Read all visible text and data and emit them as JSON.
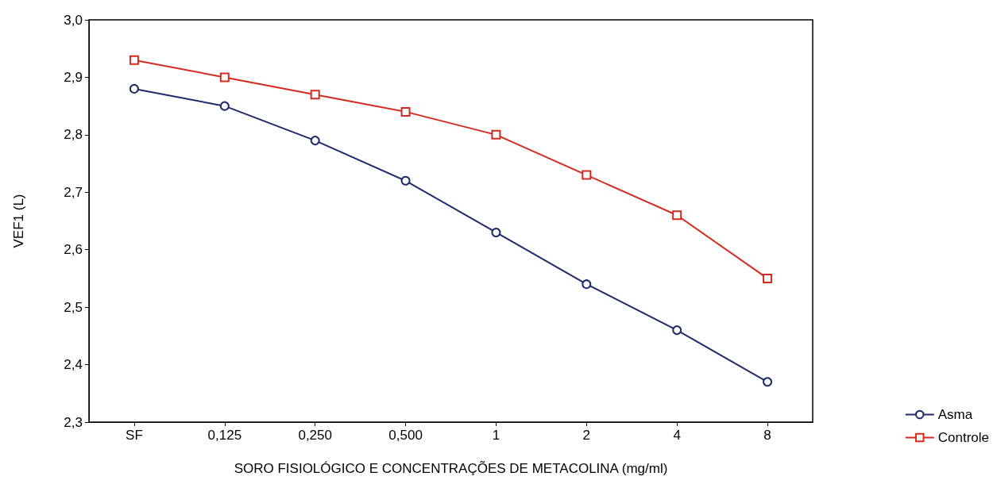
{
  "chart_data": {
    "type": "line",
    "xlabel": "SORO FISIOLÓGICO E CONCENTRAÇÕES DE METACOLINA (mg/ml)",
    "ylabel": "VEF1 (L)",
    "categories": [
      "SF",
      "0,125",
      "0,250",
      "0,500",
      "1",
      "2",
      "4",
      "8"
    ],
    "series": [
      {
        "name": "Asma",
        "color": "#1f2a6e",
        "marker": "circle",
        "values": [
          2.88,
          2.85,
          2.79,
          2.72,
          2.63,
          2.54,
          2.46,
          2.37
        ]
      },
      {
        "name": "Controle",
        "color": "#d42a1f",
        "marker": "square",
        "values": [
          2.93,
          2.9,
          2.87,
          2.84,
          2.8,
          2.73,
          2.66,
          2.55
        ]
      }
    ],
    "ylim": [
      2.3,
      3.0
    ],
    "yticks": [
      {
        "value": 2.3,
        "label": "2,3"
      },
      {
        "value": 2.4,
        "label": "2,4"
      },
      {
        "value": 2.5,
        "label": "2,5"
      },
      {
        "value": 2.6,
        "label": "2,6"
      },
      {
        "value": 2.7,
        "label": "2,7"
      },
      {
        "value": 2.8,
        "label": "2,8"
      },
      {
        "value": 2.9,
        "label": "2,9"
      },
      {
        "value": 3.0,
        "label": "3,0"
      }
    ],
    "grid": false,
    "legend": "bottom right",
    "line_style": "solid"
  }
}
